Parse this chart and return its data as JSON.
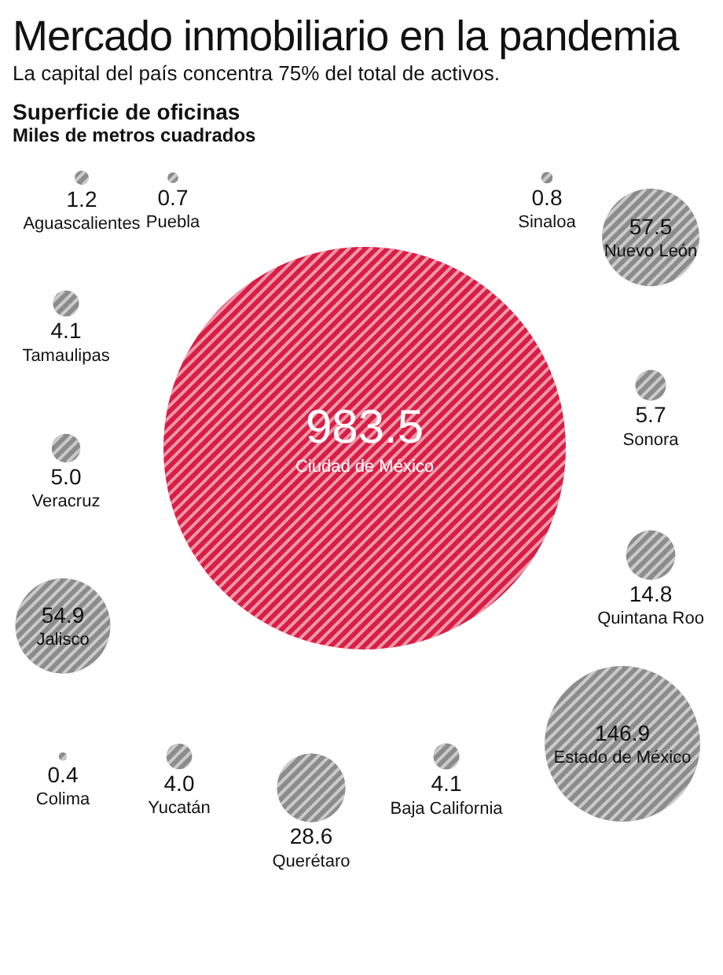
{
  "chart_data": {
    "type": "other",
    "title": "Mercado inmobiliario en la pandemia",
    "subtitle": "La capital del país concentra 75% del total de activos.",
    "annotations": [
      "Superficie de oficinas",
      "Miles de metros cuadrados"
    ],
    "categories": [
      "Aguascalientes",
      "Puebla",
      "Sinaloa",
      "Nuevo León",
      "Tamaulipas",
      "Sonora",
      "Ciudad de México",
      "Veracruz",
      "Quintana Roo",
      "Jalisco",
      "Estado de México",
      "Colima",
      "Yucatán",
      "Baja California",
      "Querétaro"
    ],
    "values": [
      1.2,
      0.7,
      0.8,
      57.5,
      4.1,
      5.7,
      983.5,
      5.0,
      14.8,
      54.9,
      146.9,
      0.4,
      4.0,
      4.1,
      28.6
    ],
    "colors": [
      "#8c8c8c",
      "#8c8c8c",
      "#8c8c8c",
      "#8c8c8c",
      "#8c8c8c",
      "#8c8c8c",
      "#d81e45",
      "#8c8c8c",
      "#8c8c8c",
      "#8c8c8c",
      "#8c8c8c",
      "#8c8c8c",
      "#8c8c8c",
      "#8c8c8c",
      "#8c8c8c"
    ],
    "value_labels": [
      "1.2",
      "0.7",
      "0.8",
      "57.5",
      "4.1",
      "5.7",
      "983.5",
      "5.0",
      "14.8",
      "54.9",
      "146.9",
      "0.4",
      "4.0",
      "4.1",
      "28.6"
    ]
  }
}
